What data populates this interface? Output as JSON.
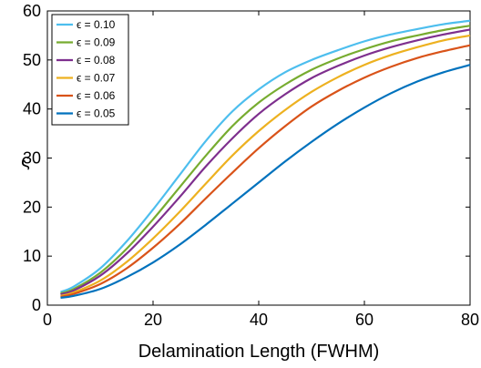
{
  "chart_data": {
    "type": "line",
    "title": "",
    "xlabel": "Delamination Length (FWHM)",
    "ylabel": "ς",
    "xlim": [
      0,
      80
    ],
    "ylim": [
      0,
      60
    ],
    "xticks": [
      0,
      20,
      40,
      60,
      80
    ],
    "yticks": [
      0,
      10,
      20,
      30,
      40,
      50,
      60
    ],
    "grid": false,
    "legend_position": "top-left",
    "x": [
      2.5,
      5,
      10,
      15,
      20,
      25,
      30,
      35,
      40,
      45,
      50,
      55,
      60,
      65,
      70,
      75,
      80
    ],
    "series": [
      {
        "name": "ϵ = 0.10",
        "color": "#4DBEEE",
        "values": [
          2.7,
          3.8,
          7.5,
          13.0,
          19.5,
          26.5,
          33.5,
          39.5,
          44.0,
          47.5,
          50.0,
          52.0,
          53.8,
          55.2,
          56.3,
          57.3,
          58.0
        ]
      },
      {
        "name": "ϵ = 0.09",
        "color": "#77AC30",
        "values": [
          2.4,
          3.3,
          6.6,
          11.5,
          17.5,
          24.0,
          30.5,
          36.5,
          41.3,
          45.0,
          48.0,
          50.3,
          52.2,
          53.8,
          55.0,
          56.1,
          57.0
        ]
      },
      {
        "name": "ϵ = 0.08",
        "color": "#7E2F8E",
        "values": [
          2.2,
          3.0,
          6.0,
          10.5,
          16.0,
          22.0,
          28.3,
          34.0,
          39.0,
          43.0,
          46.3,
          48.8,
          50.9,
          52.6,
          54.0,
          55.2,
          56.2
        ]
      },
      {
        "name": "ϵ = 0.07",
        "color": "#EDB120",
        "values": [
          1.9,
          2.6,
          5.0,
          8.8,
          13.6,
          19.0,
          24.8,
          30.5,
          35.5,
          39.8,
          43.5,
          46.5,
          49.0,
          51.0,
          52.6,
          54.0,
          55.0
        ]
      },
      {
        "name": "ϵ = 0.06",
        "color": "#D95319",
        "values": [
          1.7,
          2.3,
          4.3,
          7.5,
          11.7,
          16.5,
          21.8,
          27.0,
          32.0,
          36.5,
          40.5,
          43.7,
          46.4,
          48.6,
          50.4,
          51.8,
          53.0
        ]
      },
      {
        "name": "ϵ = 0.05",
        "color": "#0072BD",
        "values": [
          1.5,
          1.9,
          3.3,
          5.7,
          8.7,
          12.3,
          16.4,
          20.7,
          25.0,
          29.3,
          33.3,
          37.0,
          40.3,
          43.2,
          45.6,
          47.5,
          49.0
        ]
      }
    ]
  }
}
